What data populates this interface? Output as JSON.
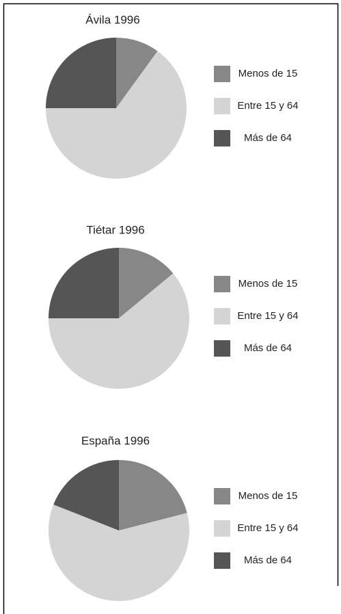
{
  "chart_data": [
    {
      "type": "pie",
      "title": "Ávila 1996",
      "categories": [
        "Menos de 15",
        "Entre 15 y 64",
        "Más de 64"
      ],
      "values": [
        10,
        65,
        25
      ],
      "colors": [
        "#878787",
        "#d4d4d4",
        "#555555"
      ]
    },
    {
      "type": "pie",
      "title": "Tiétar 1996",
      "categories": [
        "Menos de 15",
        "Entre 15 y 64",
        "Más de 64"
      ],
      "values": [
        14,
        61,
        25
      ],
      "colors": [
        "#878787",
        "#d4d4d4",
        "#555555"
      ]
    },
    {
      "type": "pie",
      "title": "España 1996",
      "categories": [
        "Menos de 15",
        "Entre 15 y 64",
        "Más de 64"
      ],
      "values": [
        21,
        60,
        19
      ],
      "colors": [
        "#878787",
        "#d4d4d4",
        "#555555"
      ]
    }
  ]
}
